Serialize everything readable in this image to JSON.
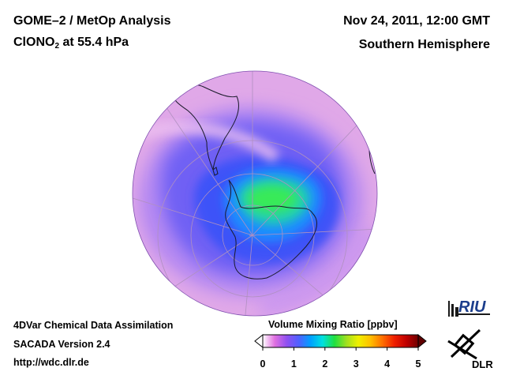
{
  "header": {
    "title_line_1": "GOME–2 / MetOp Analysis",
    "title_species": "ClONO",
    "title_subscript": "2",
    "title_level": " at 55.4 hPa",
    "date_time": "Nov 24, 2011, 12:00 GMT",
    "hemisphere": "Southern Hemisphere"
  },
  "footer": {
    "system": "4DVar Chemical Data Assimilation",
    "version": "SACADA Version 2.4",
    "url": "http://wdc.dlr.de"
  },
  "colorbar": {
    "title": "Volume Mixing Ratio [ppbv]",
    "ticks": [
      "0",
      "1",
      "2",
      "3",
      "4",
      "5"
    ],
    "min": 0,
    "max": 5,
    "colors": [
      "#ffffff",
      "#e070e0",
      "#9050f0",
      "#5060ff",
      "#00a0ff",
      "#00e0e0",
      "#20e040",
      "#a0e020",
      "#f0f000",
      "#ffc000",
      "#ff7000",
      "#f02000",
      "#c00000",
      "#700000"
    ]
  },
  "map_colors": {
    "background_ring": "#e0a8e8",
    "low": "#a070f0",
    "mid": "#5a55f5",
    "high": "#1890ff",
    "peak": "#30e860"
  },
  "logos": {
    "riu_text": "RIU",
    "dlr_text": "DLR"
  }
}
